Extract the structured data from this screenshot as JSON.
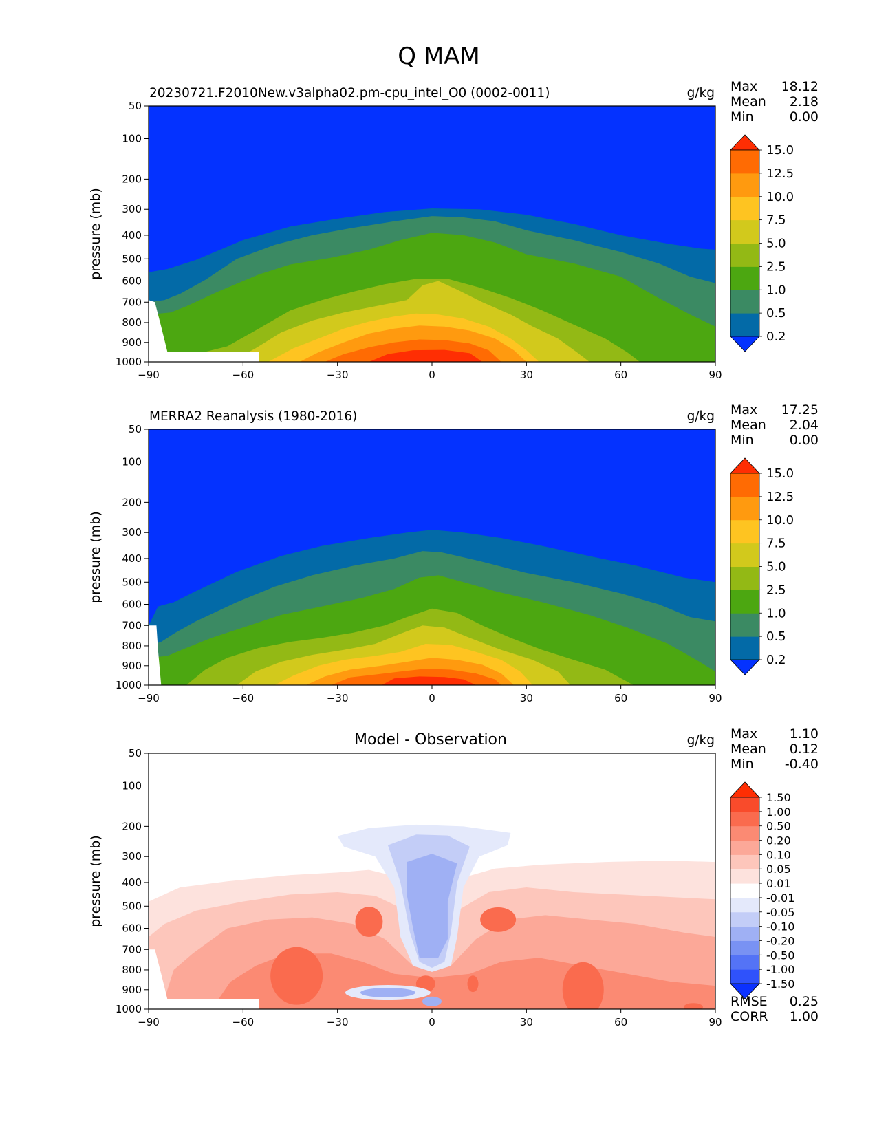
{
  "title": "Q MAM",
  "units_label": "g/kg",
  "ylabel": "pressure (mb)",
  "x_ticks": [
    "−90",
    "−60",
    "−30",
    "0",
    "30",
    "60",
    "90"
  ],
  "y_ticks": [
    "50",
    "100",
    "200",
    "300",
    "400",
    "500",
    "600",
    "700",
    "800",
    "900",
    "1000"
  ],
  "stat_labels": {
    "max": "Max",
    "mean": "Mean",
    "min": "Min",
    "rmse": "RMSE",
    "corr": "CORR"
  },
  "chart_data": [
    {
      "type": "contour",
      "title": "20230721.F2010New.v3alpha02.pm-cpu_intel_O0 (0002-0011)",
      "units": "g/kg",
      "xlabel": "",
      "ylabel": "pressure (mb)",
      "xlim": [
        -90,
        90
      ],
      "ylim": [
        1000,
        50
      ],
      "stats": {
        "max": "18.12",
        "mean": "2.18",
        "min": "0.00"
      },
      "colorbar": {
        "levels": [
          "0.2",
          "0.5",
          "1.0",
          "2.5",
          "5.0",
          "7.5",
          "10.0",
          "12.5",
          "15.0"
        ],
        "colors": [
          "#0432ff",
          "#036aa7",
          "#3b8a63",
          "#4ca711",
          "#93b915",
          "#d2c91c",
          "#fec421",
          "#ff9a0f",
          "#ff6b03",
          "#ff2e03"
        ]
      }
    },
    {
      "type": "contour",
      "title": "MERRA2 Reanalysis (1980-2016)",
      "units": "g/kg",
      "xlabel": "",
      "ylabel": "pressure (mb)",
      "xlim": [
        -90,
        90
      ],
      "ylim": [
        1000,
        50
      ],
      "stats": {
        "max": "17.25",
        "mean": "2.04",
        "min": "0.00"
      },
      "colorbar": {
        "levels": [
          "0.2",
          "0.5",
          "1.0",
          "2.5",
          "5.0",
          "7.5",
          "10.0",
          "12.5",
          "15.0"
        ],
        "colors": [
          "#0432ff",
          "#036aa7",
          "#3b8a63",
          "#4ca711",
          "#93b915",
          "#d2c91c",
          "#fec421",
          "#ff9a0f",
          "#ff6b03",
          "#ff2e03"
        ]
      }
    },
    {
      "type": "contour",
      "title": "Model - Observation",
      "units": "g/kg",
      "xlabel": "",
      "ylabel": "pressure (mb)",
      "xlim": [
        -90,
        90
      ],
      "ylim": [
        1000,
        50
      ],
      "stats": {
        "max": "1.10",
        "mean": "0.12",
        "min": "-0.40",
        "rmse": "0.25",
        "corr": "1.00"
      },
      "colorbar": {
        "levels": [
          "-1.50",
          "-1.00",
          "-0.50",
          "-0.20",
          "-0.10",
          "-0.05",
          "-0.01",
          "0.01",
          "0.05",
          "0.10",
          "0.20",
          "0.50",
          "1.00",
          "1.50"
        ],
        "colors": [
          "#0b31ff",
          "#2f52fb",
          "#5473f6",
          "#7992f3",
          "#9fb0f4",
          "#c3cdf7",
          "#e4e9fb",
          "#ffffff",
          "#fde2dd",
          "#fdc6bb",
          "#fca898",
          "#fb8a73",
          "#fa6b4e",
          "#f94b2b",
          "#ff2e03"
        ]
      }
    }
  ]
}
